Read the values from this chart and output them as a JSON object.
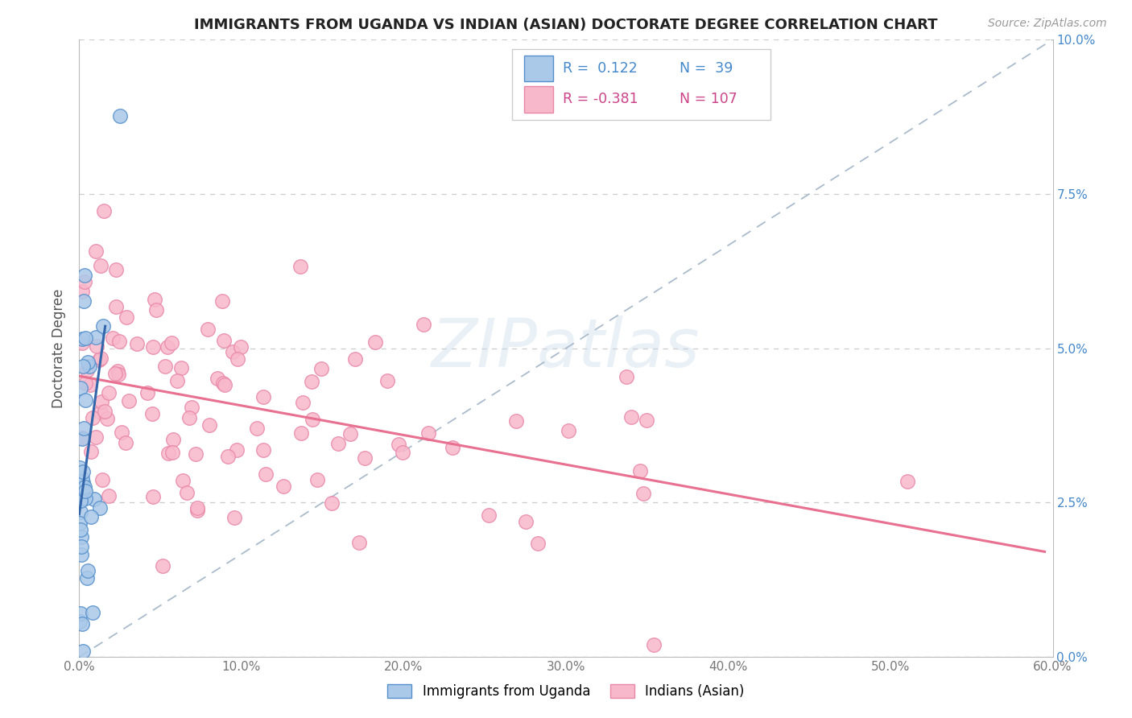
{
  "title": "IMMIGRANTS FROM UGANDA VS INDIAN (ASIAN) DOCTORATE DEGREE CORRELATION CHART",
  "source_text": "Source: ZipAtlas.com",
  "ylabel": "Doctorate Degree",
  "xlim": [
    0.0,
    0.6
  ],
  "ylim": [
    0.0,
    0.1
  ],
  "xticks": [
    0.0,
    0.1,
    0.2,
    0.3,
    0.4,
    0.5,
    0.6
  ],
  "xticklabels": [
    "0.0%",
    "10.0%",
    "20.0%",
    "30.0%",
    "40.0%",
    "50.0%",
    "60.0%"
  ],
  "yticks": [
    0.0,
    0.025,
    0.05,
    0.075,
    0.1
  ],
  "yticklabels": [
    "0.0%",
    "2.5%",
    "5.0%",
    "7.5%",
    "10.0%"
  ],
  "watermark": "ZIPatlas",
  "blue_scatter_color": "#aac8e8",
  "blue_edge_color": "#5590cc",
  "pink_scatter_color": "#f8b8cc",
  "pink_edge_color": "#e888a8",
  "blue_line_color": "#3366aa",
  "pink_line_color": "#e87090",
  "ref_line_color": "#aabbcc",
  "grid_color": "#cccccc",
  "title_color": "#222222",
  "ylabel_color": "#555555",
  "tick_color": "#777777",
  "right_tick_color": "#4488cc",
  "source_color": "#999999",
  "legend_blue_r_color": "#4488cc",
  "legend_blue_n_color": "#4488cc",
  "legend_pink_r_color": "#cc4488",
  "legend_pink_n_color": "#cc4488",
  "legend_box_edge": "#cccccc",
  "bottom_legend_label1": "Immigrants from Uganda",
  "bottom_legend_label2": "Indians (Asian)"
}
